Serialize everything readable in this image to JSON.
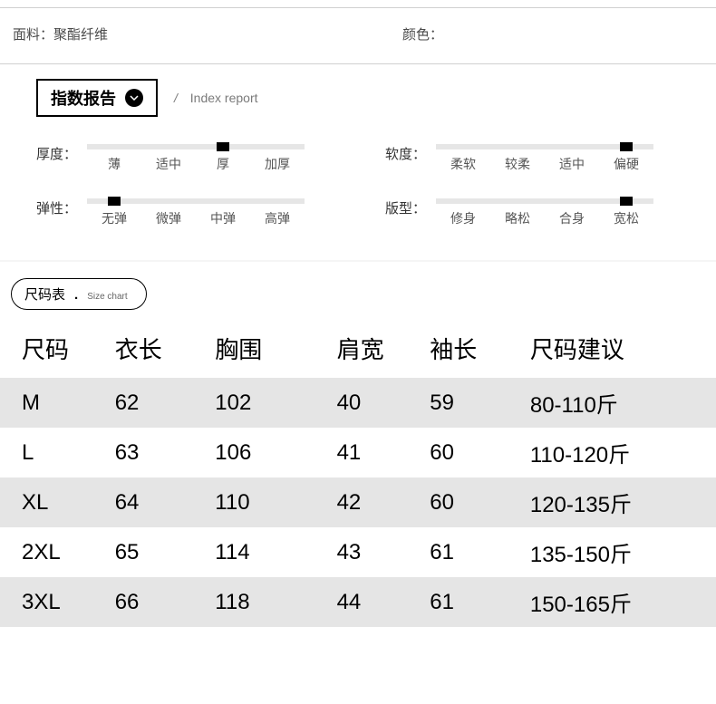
{
  "info": {
    "fabric_label": "面料：",
    "fabric_value": "聚酯纤维",
    "color_label": "颜色："
  },
  "index_report": {
    "title": "指数报告",
    "subtitle_en": "Index report",
    "slash": "/"
  },
  "indicators": [
    {
      "label": "厚度：",
      "options": [
        "薄",
        "适中",
        "厚",
        "加厚"
      ],
      "active_index": 2
    },
    {
      "label": "软度：",
      "options": [
        "柔软",
        "较柔",
        "适中",
        "偏硬"
      ],
      "active_index": 3
    },
    {
      "label": "弹性：",
      "options": [
        "无弹",
        "微弹",
        "中弹",
        "高弹"
      ],
      "active_index": 0
    },
    {
      "label": "版型：",
      "options": [
        "修身",
        "略松",
        "合身",
        "宽松"
      ],
      "active_index": 3
    }
  ],
  "size_chart": {
    "badge_cn": "尺码表",
    "badge_dot": ".",
    "badge_en": "Size chart",
    "columns": [
      "尺码",
      "衣长",
      "胸围",
      "肩宽",
      "袖长",
      "尺码建议"
    ],
    "rows": [
      [
        "M",
        "62",
        "102",
        "40",
        "59",
        "80-110斤"
      ],
      [
        "L",
        "63",
        "106",
        "41",
        "60",
        "110-120斤"
      ],
      [
        "XL",
        "64",
        "110",
        "42",
        "60",
        "120-135斤"
      ],
      [
        "2XL",
        "65",
        "114",
        "43",
        "61",
        "135-150斤"
      ],
      [
        "3XL",
        "66",
        "118",
        "44",
        "61",
        "150-165斤"
      ]
    ]
  },
  "colors": {
    "bar_bg": "#e6e6e6",
    "bar_active": "#000000",
    "row_stripe": "#e5e5e5",
    "text_main": "#000000",
    "text_sub": "#7a7a7a",
    "border": "#d0d0d0"
  }
}
